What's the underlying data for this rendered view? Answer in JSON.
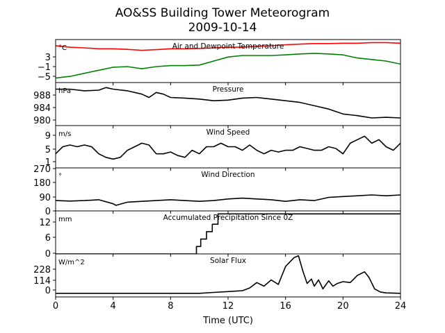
{
  "chart_data": {
    "type": "line",
    "title": "AO&SS Building Tower Meteorogram",
    "subtitle": "2009-10-14",
    "xlabel": "Time (UTC)",
    "xlim": [
      0,
      24
    ],
    "xticks": [
      "0",
      "4",
      "8",
      "12",
      "16",
      "20",
      "24"
    ],
    "panels": [
      {
        "title": "Air and Dewpoint Temperature",
        "unit": "°C",
        "ylim": [
          -6.5,
          7.5
        ],
        "yticks": [
          "3",
          "−1",
          "−5"
        ],
        "series": [
          {
            "color": "#ff0000",
            "x": [
              0,
              1,
              2,
              3,
              4,
              5,
              6,
              7,
              8,
              9,
              10,
              11,
              12,
              13,
              14,
              15,
              16,
              17,
              18,
              19,
              20,
              21,
              22,
              23,
              24
            ],
            "y": [
              5.5,
              5.0,
              4.8,
              4.5,
              4.5,
              4.3,
              4.0,
              4.2,
              4.5,
              4.5,
              4.6,
              4.8,
              5.0,
              5.0,
              5.3,
              5.5,
              5.8,
              6.0,
              6.2,
              6.2,
              6.3,
              6.3,
              6.5,
              6.5,
              6.3
            ]
          },
          {
            "color": "#008000",
            "x": [
              0,
              1,
              2,
              3,
              4,
              5,
              6,
              7,
              8,
              9,
              10,
              11,
              12,
              13,
              14,
              15,
              16,
              17,
              18,
              19,
              20,
              21,
              22,
              23,
              24
            ],
            "y": [
              -5.0,
              -4.5,
              -3.5,
              -2.5,
              -1.5,
              -1.3,
              -2.0,
              -1.3,
              -1.0,
              -1.0,
              -0.8,
              0.5,
              1.8,
              2.3,
              2.3,
              2.3,
              2.5,
              2.8,
              3.0,
              2.8,
              2.5,
              1.5,
              1.0,
              0.5,
              -0.5
            ]
          }
        ]
      },
      {
        "title": "Pressure",
        "unit": "hPa",
        "ylim": [
          978.5,
          991.5
        ],
        "yticks": [
          "988",
          "984",
          "980"
        ],
        "series": [
          {
            "color": "#000000",
            "x": [
              0,
              1,
              2,
              3,
              3.5,
              4,
              5,
              6,
              6.5,
              7,
              7.5,
              8,
              9,
              10,
              11,
              12,
              13,
              14,
              15,
              16,
              17,
              18,
              19,
              20,
              21,
              22,
              23,
              24
            ],
            "y": [
              989.5,
              989.5,
              989.0,
              989.2,
              990.0,
              989.5,
              989.0,
              988.0,
              987.0,
              988.5,
              988.0,
              987.0,
              986.8,
              986.5,
              986.0,
              986.2,
              986.8,
              987.0,
              986.5,
              986.0,
              985.5,
              984.5,
              983.5,
              982.0,
              981.5,
              980.8,
              981.0,
              980.8
            ]
          }
        ]
      },
      {
        "title": "Wind Speed",
        "unit": "m/s",
        "ylim": [
          0,
          12
        ],
        "yticks": [
          "9",
          "5",
          "1"
        ],
        "series": [
          {
            "color": "#000000",
            "x": [
              0,
              0.5,
              1,
              1.5,
              2,
              2.5,
              3,
              3.5,
              4,
              4.5,
              5,
              5.5,
              6,
              6.5,
              7,
              7.5,
              8,
              8.5,
              9,
              9.5,
              10,
              10.5,
              11,
              11.5,
              12,
              12.5,
              13,
              13.5,
              14,
              14.5,
              15,
              15.5,
              16,
              16.5,
              17,
              17.5,
              18,
              18.5,
              19,
              19.5,
              20,
              20.5,
              21,
              21.5,
              22,
              22.5,
              23,
              23.5,
              24
            ],
            "y": [
              4,
              6,
              6.5,
              6,
              6.5,
              6,
              4,
              3,
              2.5,
              3,
              5,
              6,
              7,
              6.5,
              4,
              4,
              4.5,
              3.5,
              3,
              5,
              4,
              6,
              6,
              7,
              6,
              6,
              5,
              6.5,
              5,
              4,
              5,
              4.5,
              5,
              5,
              6,
              5.5,
              5,
              5,
              6,
              5.5,
              4,
              7,
              8,
              9,
              7,
              8,
              6,
              5,
              7
            ]
          }
        ]
      },
      {
        "title": "Wind Direction",
        "unit": "°",
        "ylim": [
          0,
          270
        ],
        "yticks": [
          "270",
          "180",
          "90",
          "0"
        ],
        "series": [
          {
            "color": "#000000",
            "x": [
              0,
              1,
              2,
              3,
              4,
              4.2,
              5,
              6,
              7,
              8,
              9,
              10,
              11,
              12,
              13,
              14,
              15,
              16,
              17,
              18,
              19,
              20,
              21,
              22,
              23,
              24
            ],
            "y": [
              65,
              62,
              65,
              70,
              45,
              35,
              55,
              60,
              65,
              70,
              65,
              60,
              65,
              75,
              80,
              75,
              70,
              60,
              70,
              65,
              85,
              90,
              95,
              100,
              95,
              100
            ]
          }
        ]
      },
      {
        "title": "Accumulated Precipitation Since 0Z",
        "unit": "mm",
        "ylim": [
          0,
          14.5
        ],
        "yticks": [
          "12",
          "6",
          "0"
        ],
        "series": [
          {
            "color": "#000000",
            "step": true,
            "x": [
              0,
              9.8,
              10.1,
              10.5,
              10.9,
              11.3,
              11.9,
              24
            ],
            "y": [
              0,
              2.5,
              5,
              7.5,
              10,
              13.5,
              13.5,
              13.5
            ]
          }
        ]
      },
      {
        "title": "Solar Flux",
        "unit": "W/m^2",
        "ylim": [
          -40,
          440
        ],
        "yticks": [
          "228",
          "114",
          "0"
        ],
        "series": [
          {
            "color": "#000000",
            "x": [
              0,
              9.5,
              10,
              11,
              12,
              13,
              13.5,
              14,
              14.5,
              15,
              15.5,
              16,
              16.3,
              16.6,
              16.9,
              17.2,
              17.5,
              17.8,
              18,
              18.3,
              18.6,
              19,
              19.3,
              19.6,
              20,
              20.5,
              21,
              21.5,
              21.8,
              22.2,
              22.6,
              23,
              24
            ],
            "y": [
              0,
              0,
              0,
              10,
              20,
              30,
              60,
              120,
              80,
              150,
              100,
              300,
              350,
              400,
              420,
              250,
              110,
              160,
              80,
              150,
              50,
              140,
              80,
              110,
              130,
              120,
              200,
              240,
              180,
              50,
              15,
              5,
              0
            ]
          }
        ]
      }
    ]
  }
}
